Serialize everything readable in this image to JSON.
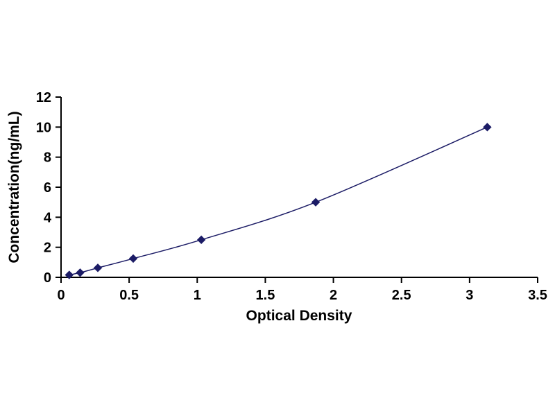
{
  "page": {
    "background": "#ffffff"
  },
  "chart_data": {
    "type": "line",
    "title": "",
    "xlabel": "Optical Density",
    "ylabel": "Concentration(ng/mL)",
    "x": [
      0.06,
      0.14,
      0.27,
      0.53,
      1.03,
      1.87,
      3.13
    ],
    "y": [
      0.16,
      0.31,
      0.63,
      1.25,
      2.5,
      5,
      10
    ],
    "xlim": [
      0,
      3.5
    ],
    "ylim": [
      0,
      12
    ],
    "xticks": {
      "values": [
        0,
        0.5,
        1,
        1.5,
        2,
        2.5,
        3,
        3.5
      ],
      "labels": [
        "0",
        "0.5",
        "1",
        "1.5",
        "2",
        "2.5",
        "3",
        "3.5"
      ]
    },
    "yticks": {
      "values": [
        0,
        2,
        4,
        6,
        8,
        10,
        12
      ],
      "labels": [
        "0",
        "2",
        "4",
        "6",
        "8",
        "10",
        "12"
      ]
    },
    "line_color": "#1c1c66",
    "marker": "diamond",
    "marker_color": "#1c1c66",
    "axis_color": "#000000",
    "grid": false,
    "legend": null
  }
}
